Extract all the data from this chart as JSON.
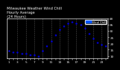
{
  "title_line1": "Milwaukee Weather Wind Chill",
  "title_line2": "Hourly Average",
  "title_line3": "(24 Hours)",
  "hours": [
    1,
    2,
    3,
    4,
    5,
    6,
    7,
    8,
    9,
    10,
    11,
    12,
    13,
    14,
    15,
    16,
    17,
    18,
    19,
    20,
    21,
    22,
    23,
    24
  ],
  "wind_chill": [
    14,
    13,
    13,
    12,
    12,
    11,
    11,
    10,
    14,
    18,
    22,
    27,
    31,
    34,
    36,
    37,
    36,
    35,
    32,
    28,
    24,
    21,
    19,
    18
  ],
  "dot_color": "#0000cc",
  "bg_color": "#000000",
  "plot_bg": "#000000",
  "legend_color": "#0055ff",
  "ylim_min": 8,
  "ylim_max": 40,
  "ytick_vals": [
    10,
    15,
    20,
    25,
    30,
    35,
    40
  ],
  "grid_color": "#555555",
  "title_fontsize": 3.8,
  "tick_fontsize": 3.2,
  "legend_label": "Wind Chill",
  "text_color": "#ffffff",
  "grid_hours": [
    3,
    5,
    7,
    9,
    11,
    13,
    15,
    17,
    19,
    21,
    23
  ]
}
